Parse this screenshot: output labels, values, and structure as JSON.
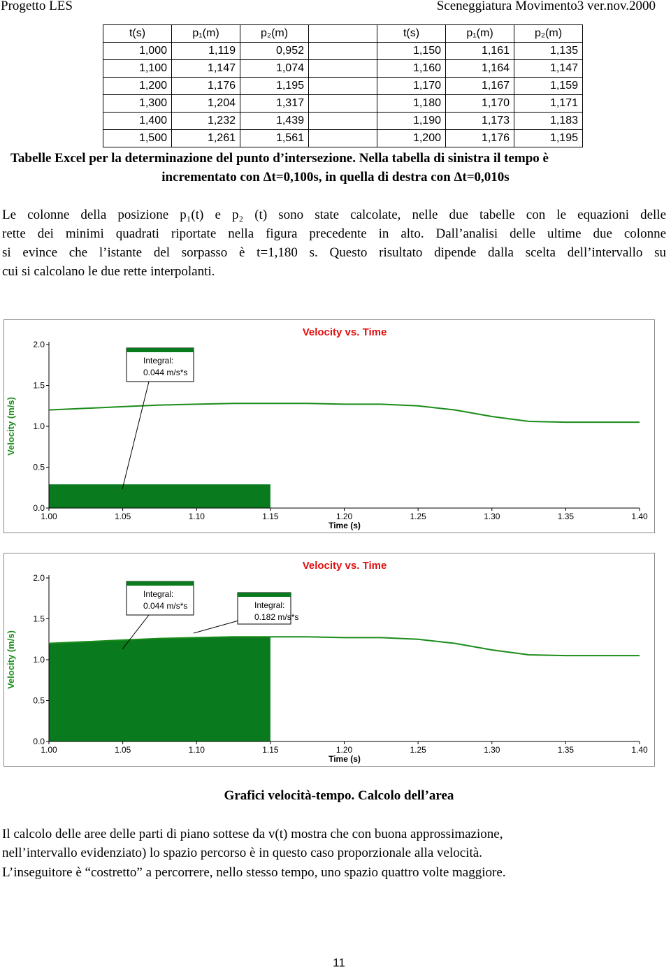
{
  "header": {
    "left": "Progetto LES",
    "right": "Sceneggiatura Movimento3 ver.nov.2000"
  },
  "tables": [
    {
      "header": [
        "t(s)",
        "p₁(m)",
        "p₂(m)"
      ],
      "rows": [
        [
          "1,000",
          "1,119",
          "0,952"
        ],
        [
          "1,100",
          "1,147",
          "1,074"
        ],
        [
          "1,200",
          "1,176",
          "1,195"
        ],
        [
          "1,300",
          "1,204",
          "1,317"
        ],
        [
          "1,400",
          "1,232",
          "1,439"
        ],
        [
          "1,500",
          "1,261",
          "1,561"
        ]
      ]
    },
    {
      "header": [
        "t(s)",
        "p₁(m)",
        "p₂(m)"
      ],
      "rows": [
        [
          "1,150",
          "1,161",
          "1,135"
        ],
        [
          "1,160",
          "1,164",
          "1,147"
        ],
        [
          "1,170",
          "1,167",
          "1,159"
        ],
        [
          "1,180",
          "1,170",
          "1,171"
        ],
        [
          "1,190",
          "1,173",
          "1,183"
        ],
        [
          "1,200",
          "1,176",
          "1,195"
        ]
      ]
    }
  ],
  "table_caption": [
    "Tabelle Excel per la determinazione del punto d’intersezione. Nella tabella di sinistra il tempo è",
    "incrementato con Δt=0,100s, in quella di destra con Δt=0,010s"
  ],
  "paragraph_1": [
    "Le colonne della posizione p₁(t) e p₂ (t) sono state calcolate, nelle due tabelle con le equazioni delle",
    "rette dei minimi quadrati riportate nella figura precedente in alto. Dall’analisi delle ultime due colonne",
    "si evince che l’istante del sorpasso è t=1,180 s. Questo risultato dipende dalla scelta dell’intervallo su",
    "cui si calcolano le due rette interpolanti."
  ],
  "chart_data": [
    {
      "type": "line",
      "title": "Velocity vs. Time",
      "x_label": "Time (s)",
      "y_label": "Velocity (m/s)",
      "color": "#1a8c1a",
      "x": [
        1.0,
        1.025,
        1.05,
        1.075,
        1.1,
        1.125,
        1.15,
        1.175,
        1.2,
        1.225,
        1.25,
        1.275,
        1.3,
        1.325,
        1.35,
        1.375,
        1.4
      ],
      "values": [
        1.2,
        1.22,
        1.24,
        1.26,
        1.27,
        1.28,
        1.28,
        1.28,
        1.27,
        1.27,
        1.25,
        1.2,
        1.12,
        1.06,
        1.05,
        1.05,
        1.05
      ],
      "xlim": [
        1.0,
        1.4
      ],
      "ylim": [
        0,
        2
      ],
      "xticks": [
        {
          "value": 1,
          "label": "1.00"
        },
        1.05,
        {
          "value": 1.1,
          "label": "1.10"
        },
        1.15,
        {
          "value": 1.2,
          "label": "1.20"
        },
        1.25,
        {
          "value": 1.3,
          "label": "1.30"
        },
        1.35,
        {
          "value": 1.4,
          "label": "1.40"
        }
      ],
      "yticks": [
        {
          "value": 0,
          "label": "0.0"
        },
        0.5,
        {
          "value": 1,
          "label": "1.0"
        },
        1.5,
        {
          "value": 2,
          "label": "2.0"
        }
      ],
      "shaded_region": {
        "x": [
          1.0,
          1.15
        ],
        "y": 0.29
      },
      "annotations": [
        {
          "lines": [
            "Integral:",
            "0.044 m/s*s"
          ]
        }
      ]
    },
    {
      "type": "line",
      "title": "Velocity vs. Time",
      "x_label": "Time (s)",
      "y_label": "Velocity (m/s)",
      "color": "#1a8c1a",
      "x": [
        1.0,
        1.025,
        1.05,
        1.075,
        1.1,
        1.125,
        1.15,
        1.175,
        1.2,
        1.225,
        1.25,
        1.275,
        1.3,
        1.325,
        1.35,
        1.375,
        1.4
      ],
      "values": [
        1.2,
        1.22,
        1.24,
        1.26,
        1.27,
        1.28,
        1.28,
        1.28,
        1.27,
        1.27,
        1.25,
        1.2,
        1.12,
        1.06,
        1.05,
        1.05,
        1.05
      ],
      "xlim": [
        1.0,
        1.4
      ],
      "ylim": [
        0,
        2
      ],
      "xticks": [
        {
          "value": 1,
          "label": "1.00"
        },
        1.05,
        {
          "value": 1.1,
          "label": "1.10"
        },
        1.15,
        {
          "value": 1.2,
          "label": "1.20"
        },
        1.25,
        {
          "value": 1.3,
          "label": "1.30"
        },
        1.35,
        {
          "value": 1.4,
          "label": "1.40"
        }
      ],
      "yticks": [
        {
          "value": 0,
          "label": "0.0"
        },
        0.5,
        {
          "value": 1,
          "label": "1.0"
        },
        1.5,
        {
          "value": 2,
          "label": "2.0"
        }
      ],
      "shaded_region": {
        "x": [
          1.0,
          1.15
        ]
      },
      "annotations": [
        {
          "lines": [
            "Integral:",
            "0.044 m/s*s"
          ]
        },
        {
          "lines": [
            "Integral:",
            "0.182 m/s*s"
          ]
        }
      ]
    }
  ],
  "figure_caption": "Grafici velocità-tempo. Calcolo dell’area",
  "paragraph_2": [
    "Il calcolo delle aree delle parti di piano sottese da v(t) mostra che con buona approssimazione,",
    "nell’intervallo evidenziato) lo spazio percorso è in questo caso proporzionale alla velocità.",
    "L’inseguitore è “costretto” a percorrere, nello stesso tempo, uno spazio quattro volte maggiore."
  ],
  "page_number": "11"
}
